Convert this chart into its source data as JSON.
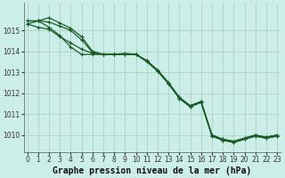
{
  "title": "Graphe pression niveau de la mer (hPa)",
  "background_color": "#cceee8",
  "grid_color": "#aaccbb",
  "line_color": "#1a5c28",
  "marker_color": "#1a5c28",
  "hours": [
    0,
    1,
    2,
    3,
    4,
    5,
    6,
    7,
    8,
    9,
    10,
    11,
    12,
    13,
    14,
    15,
    16,
    17,
    18,
    19,
    20,
    21,
    22,
    23
  ],
  "series": [
    [
      1015.3,
      1015.45,
      1015.15,
      1014.75,
      1014.2,
      1013.85,
      1013.85,
      1013.85,
      1013.85,
      1013.85,
      1013.85,
      1013.5,
      1013.05,
      1012.45,
      1011.75,
      1011.35,
      1011.55,
      1009.95,
      1009.75,
      1009.65,
      1009.8,
      1009.95,
      1009.85,
      1009.95
    ],
    [
      1015.3,
      1015.15,
      1015.05,
      1014.7,
      1014.4,
      1014.1,
      1013.9,
      1013.85,
      1013.85,
      1013.85,
      1013.85,
      1013.55,
      1013.1,
      1012.5,
      1011.8,
      1011.4,
      1011.6,
      1010.0,
      1009.8,
      1009.7,
      1009.85,
      1010.0,
      1009.9,
      1010.0
    ],
    [
      1015.45,
      1015.45,
      1015.4,
      1015.2,
      1015.0,
      1014.55,
      1013.95,
      1013.85,
      1013.85,
      1013.85,
      1013.85,
      1013.55,
      1013.1,
      1012.5,
      1011.8,
      1011.4,
      1011.6,
      1010.0,
      1009.8,
      1009.7,
      1009.85,
      1010.0,
      1009.9,
      1010.0
    ],
    [
      1015.45,
      1015.45,
      1015.6,
      1015.35,
      1015.1,
      1014.7,
      1014.0,
      1013.85,
      1013.85,
      1013.9,
      1013.85,
      1013.55,
      1013.05,
      1012.45,
      1011.75,
      1011.35,
      1011.6,
      1009.95,
      1009.75,
      1009.65,
      1009.8,
      1009.95,
      1009.85,
      1009.95
    ]
  ],
  "ylim": [
    1009.2,
    1016.3
  ],
  "yticks": [
    1010,
    1011,
    1012,
    1013,
    1014,
    1015
  ],
  "xlim": [
    -0.3,
    23.3
  ],
  "xticks": [
    0,
    1,
    2,
    3,
    4,
    5,
    6,
    7,
    8,
    9,
    10,
    11,
    12,
    13,
    14,
    15,
    16,
    17,
    18,
    19,
    20,
    21,
    22,
    23
  ],
  "tick_fontsize": 5.5,
  "title_fontsize": 7.0,
  "marker_size": 3.5,
  "line_width": 0.9
}
